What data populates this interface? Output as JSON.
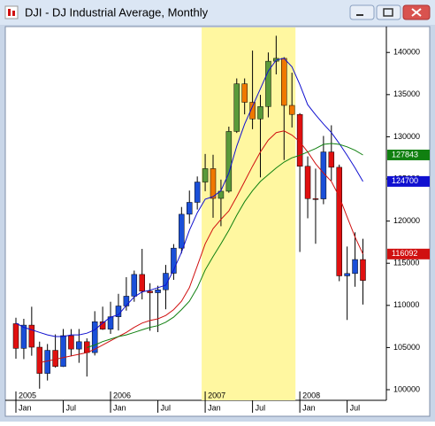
{
  "chart_data": {
    "type": "candlestick",
    "title": "DJI - DJ Industrial Average, Monthly",
    "categories": [
      "Jan",
      null,
      null,
      null,
      null,
      null,
      "Jul",
      null,
      null,
      null,
      null,
      null,
      "Jan",
      null,
      null,
      null,
      null,
      null,
      "Jul",
      null,
      null,
      null,
      null,
      null,
      "Jan",
      null,
      null,
      null,
      null,
      null,
      "Jul",
      null,
      null,
      null,
      null,
      null,
      "Jan",
      null,
      null,
      null,
      null,
      null,
      "Jul",
      null,
      null
    ],
    "year_labels": [
      {
        "value": 0,
        "label": "2005"
      },
      {
        "value": 12,
        "label": "2006"
      },
      {
        "value": 24,
        "label": "2007"
      },
      {
        "value": 36,
        "label": "2008"
      }
    ],
    "open": [
      107830,
      104900,
      107660,
      105040,
      101930,
      104670,
      102750,
      106410,
      104820,
      105690,
      104400,
      108060,
      107180,
      108650,
      109930,
      111090,
      113670,
      111680,
      111500,
      111850,
      113810,
      116790,
      120810,
      122220,
      124630,
      126220,
      122690,
      123540,
      130630,
      136280,
      134090,
      132120,
      133580,
      138960,
      139300,
      133720,
      132650,
      126500,
      122660,
      122630,
      128200,
      126380,
      113500,
      113780,
      115440
    ],
    "high": [
      108540,
      108410,
      109840,
      105700,
      105420,
      106560,
      107200,
      107190,
      107200,
      106090,
      109310,
      109850,
      110430,
      111370,
      113350,
      114130,
      116700,
      112630,
      112330,
      114800,
      117270,
      121670,
      123620,
      125290,
      127960,
      127870,
      124920,
      131200,
      136920,
      136920,
      140220,
      134970,
      140000,
      141980,
      139440,
      137600,
      132800,
      127670,
      126220,
      130100,
      131360,
      126690,
      116980,
      118670,
      117900
    ],
    "low": [
      103680,
      103630,
      104030,
      100120,
      101090,
      102620,
      102700,
      103970,
      103190,
      101560,
      104060,
      107090,
      106620,
      107020,
      109380,
      110430,
      110710,
      106990,
      106830,
      109540,
      113030,
      116160,
      119690,
      121370,
      123540,
      120390,
      119390,
      123360,
      130450,
      132660,
      130900,
      125180,
      132300,
      137400,
      127240,
      131100,
      116340,
      120330,
      117310,
      122000,
      124800,
      112870,
      108270,
      112210,
      110100
    ],
    "close": [
      104900,
      107660,
      105040,
      101930,
      104670,
      102750,
      106410,
      104820,
      105690,
      104400,
      108060,
      107180,
      108650,
      109930,
      111090,
      113670,
      111680,
      111500,
      111850,
      113810,
      116790,
      120810,
      122220,
      124630,
      126220,
      122690,
      123540,
      130630,
      136280,
      134090,
      132120,
      133580,
      138960,
      139300,
      133720,
      132650,
      126500,
      122660,
      122630,
      128200,
      126380,
      113500,
      113780,
      115440,
      112960
    ],
    "up_color": "#1a4fd8",
    "down_color": "#e01010",
    "highlight": {
      "range": [
        24,
        35
      ],
      "color": "#fff7a0",
      "up_color": "#5a9a3a",
      "down_color": "#f07800"
    },
    "lines": [
      {
        "color": "#1010d0",
        "values": [
          107900,
          107400,
          107100,
          106800,
          106500,
          106300,
          106300,
          106500,
          106500,
          106700,
          107100,
          107900,
          108600,
          108900,
          110000,
          111000,
          111600,
          111800,
          112100,
          112400,
          114200,
          116300,
          118900,
          121000,
          122600,
          122900,
          123600,
          125700,
          128900,
          131500,
          133600,
          135700,
          137800,
          139100,
          139300,
          138300,
          136200,
          133800,
          132600,
          131500,
          130500,
          129200,
          127800,
          126300,
          124700
        ]
      },
      {
        "color": "#d01010",
        "values": [
          null,
          null,
          null,
          103200,
          103400,
          103600,
          103800,
          104000,
          104200,
          104400,
          104800,
          105300,
          105800,
          106300,
          106800,
          107400,
          107900,
          108200,
          108400,
          108800,
          109500,
          110500,
          112100,
          114700,
          117300,
          119100,
          120200,
          121200,
          122900,
          124700,
          126500,
          128200,
          129600,
          130500,
          130700,
          130200,
          129400,
          128200,
          126800,
          125700,
          124700,
          122900,
          120500,
          118100,
          116092
        ]
      },
      {
        "color": "#108010",
        "values": [
          null,
          null,
          null,
          null,
          null,
          null,
          null,
          null,
          null,
          105000,
          105300,
          105700,
          106000,
          106300,
          106500,
          106800,
          107100,
          107400,
          107600,
          108000,
          108600,
          109500,
          110500,
          112100,
          114200,
          115800,
          117300,
          118900,
          120700,
          122300,
          123600,
          124700,
          125500,
          126300,
          127000,
          127500,
          127800,
          128200,
          128600,
          129100,
          129200,
          129100,
          128800,
          128400,
          127843
        ]
      }
    ],
    "ylim": [
      98740,
      143070
    ],
    "yticks": [
      100000,
      105000,
      110000,
      115000,
      120000,
      125000,
      130000,
      135000,
      140000
    ]
  }
}
